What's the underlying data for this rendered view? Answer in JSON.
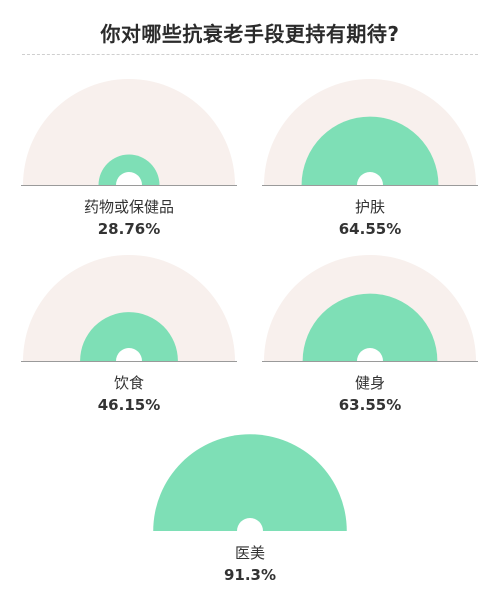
{
  "title": "你对哪些抗衰老手段更持有期待?",
  "colors": {
    "track": "#f8f0ed",
    "fill": "#7edfb6",
    "baseline": "#9a9a9a"
  },
  "chart_data": {
    "type": "radial-gauge",
    "title": "你对哪些抗衰老手段更持有期待?",
    "unit": "%",
    "max": 100,
    "items": [
      {
        "label": "药物或保健品",
        "value": 28.76,
        "display": "28.76%"
      },
      {
        "label": "护肤",
        "value": 64.55,
        "display": "64.55%"
      },
      {
        "label": "饮食",
        "value": 46.15,
        "display": "46.15%"
      },
      {
        "label": "健身",
        "value": 63.55,
        "display": "63.55%"
      },
      {
        "label": "医美",
        "value": 91.3,
        "display": "91.3%"
      }
    ]
  }
}
